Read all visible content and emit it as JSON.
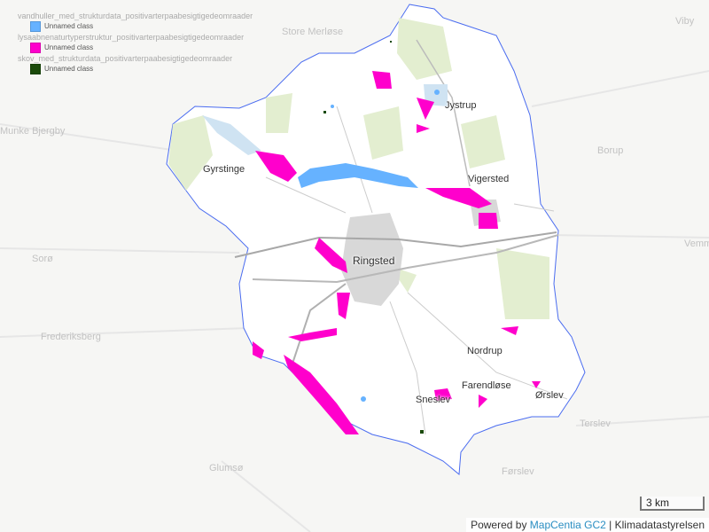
{
  "legend": [
    {
      "layer": "vandhuller_med_strukturdata_positivarterpaabesigtigedeomraader",
      "class": "Unnamed class",
      "color": "#66b2ff"
    },
    {
      "layer": "lysaabnenaturtyperstruktur_positivarterpaabesigtigedeomraader",
      "class": "Unnamed class",
      "color": "#ff00cc"
    },
    {
      "layer": "skov_med_strukturdata_positivarterpaabesigtigedeomraader",
      "class": "Unnamed class",
      "color": "#1a4a0a"
    }
  ],
  "places": {
    "ringsted": "Ringsted",
    "gyrstinge": "Gyrstinge",
    "jystrup": "Jystrup",
    "vigersted": "Vigersted",
    "nordrup": "Nordrup",
    "farendlose": "Farendløse",
    "sneslev": "Sneslev",
    "orslev": "Ørslev"
  },
  "background_places": {
    "store_merlose": "Store Merløse",
    "munke_bjergby": "Munke Bjergby",
    "soro": "Sorø",
    "frederiksberg": "Frederiksberg",
    "glumso": "Glumsø",
    "forslev": "Førslev",
    "terslev": "Terslev",
    "borup": "Borup",
    "viby": "Viby",
    "vemmelev": "Vemm"
  },
  "scale_label": "3 km",
  "attribution": {
    "prefix": "Powered by ",
    "link": "MapCentia GC2",
    "suffix": " | Klimadatastyrelsen"
  }
}
